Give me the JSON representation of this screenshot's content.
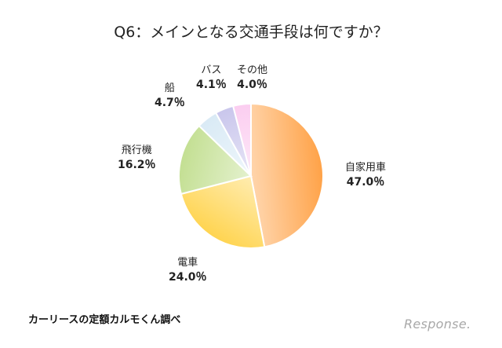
{
  "chart_data": {
    "type": "pie",
    "title": "Q6：メインとなる交通手段は何ですか？",
    "categories": [
      "自家用車",
      "電車",
      "飛行機",
      "船",
      "バス",
      "その他"
    ],
    "values": [
      47.0,
      24.0,
      16.2,
      4.7,
      4.1,
      4.0
    ],
    "value_labels": [
      "47.0％",
      "24.0％",
      "16.2％",
      "4.7％",
      "4.1％",
      "4.0％"
    ],
    "colors": [
      "#ffa247",
      "#ffd450",
      "#c3df92",
      "#d9eaf5",
      "#c9c6ec",
      "#fbcdf0"
    ],
    "legend": "none"
  },
  "source": "カーリースの定額カルモくん調べ",
  "logo": "Response."
}
